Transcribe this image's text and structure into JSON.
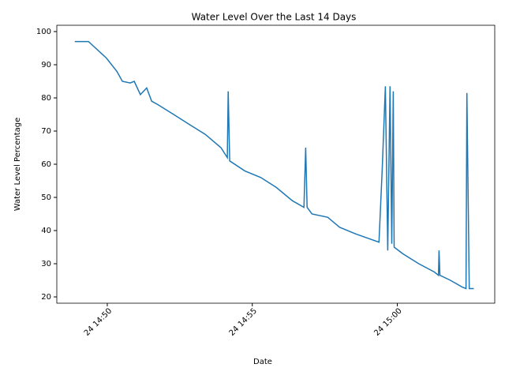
{
  "chart_data": {
    "type": "line",
    "title": "Water Level Over the Last 14 Days",
    "x_label": "Date",
    "y_label": "Water Level Percentage",
    "x": [
      48.88,
      49.35,
      49.97,
      50.33,
      50.52,
      50.79,
      50.93,
      51.14,
      51.36,
      51.53,
      51.74,
      52.29,
      52.83,
      53.38,
      53.92,
      54.14,
      54.17,
      54.22,
      54.74,
      55.29,
      55.83,
      56.38,
      56.78,
      56.84,
      56.89,
      57.06,
      57.6,
      58.01,
      58.56,
      59.37,
      59.48,
      59.59,
      59.67,
      59.75,
      59.81,
      59.86,
      59.89,
      60.19,
      60.74,
      61.28,
      61.42,
      61.44,
      61.47,
      61.83,
      62.23,
      62.37,
      62.4,
      62.48,
      62.64
    ],
    "series": [
      {
        "color": "#1f77b4",
        "values": [
          97,
          97,
          92,
          88,
          85,
          84.5,
          85,
          81,
          83,
          79,
          78,
          75,
          72,
          69,
          65,
          62,
          82,
          61,
          58,
          56,
          53,
          49,
          47,
          65,
          47,
          45,
          44,
          41,
          39,
          36.5,
          58.5,
          83.5,
          34,
          83.5,
          36,
          82,
          35,
          33,
          30,
          27.5,
          26.5,
          34,
          26.5,
          25,
          23,
          22.5,
          81.5,
          22.5,
          22.5
        ]
      }
    ],
    "xlim": [
      48.26,
      63.36
    ],
    "xticks": [
      {
        "value": 50,
        "label": "24 14:50"
      },
      {
        "value": 55,
        "label": "24 14:55"
      },
      {
        "value": 60,
        "label": "24 15:00"
      }
    ],
    "ylim": [
      18.1,
      101.9
    ],
    "yticks": [
      20,
      30,
      40,
      50,
      60,
      70,
      80,
      90,
      100
    ]
  }
}
